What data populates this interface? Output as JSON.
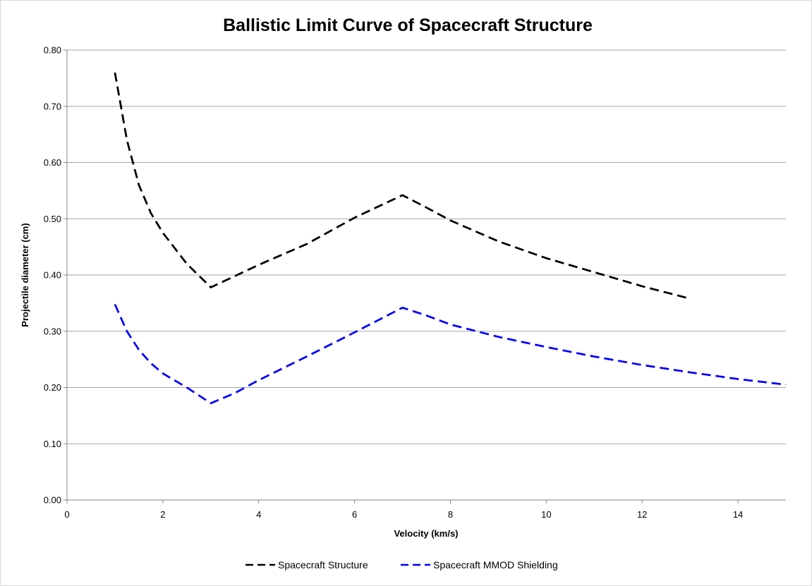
{
  "chart_data": {
    "type": "line",
    "title": "Ballistic Limit Curve of Spacecraft Structure",
    "xlabel": "Velocity (km/s)",
    "ylabel": "Projectile diameter (cm)",
    "xlim": [
      0,
      15
    ],
    "ylim": [
      0,
      0.8
    ],
    "x_ticks": [
      0,
      2,
      4,
      6,
      8,
      10,
      12,
      14
    ],
    "x_tick_labels": [
      "0",
      "2",
      "4",
      "6",
      "8",
      "10",
      "12",
      "14"
    ],
    "y_ticks": [
      0,
      0.1,
      0.2,
      0.3,
      0.4,
      0.5,
      0.6,
      0.7,
      0.8
    ],
    "y_tick_labels": [
      "0.00",
      "0.10",
      "0.20",
      "0.30",
      "0.40",
      "0.50",
      "0.60",
      "0.70",
      "0.80"
    ],
    "grid": "horizontal",
    "legend_position": "bottom",
    "line_style": "dashed",
    "series": [
      {
        "name": "Spacecraft Structure",
        "color": "#000000",
        "x": [
          1.0,
          1.25,
          1.5,
          1.75,
          2.0,
          2.5,
          3.0,
          3.5,
          4.0,
          5.0,
          6.0,
          7.0,
          7.5,
          8.0,
          9.0,
          10.0,
          11.0,
          12.0,
          13.0
        ],
        "y": [
          0.76,
          0.64,
          0.56,
          0.51,
          0.475,
          0.42,
          0.378,
          0.398,
          0.418,
          0.455,
          0.502,
          0.542,
          0.52,
          0.497,
          0.46,
          0.43,
          0.405,
          0.38,
          0.358
        ]
      },
      {
        "name": "Spacecraft MMOD Shielding",
        "color": "#0000ff",
        "x": [
          1.0,
          1.25,
          1.5,
          1.75,
          2.0,
          2.5,
          3.0,
          3.5,
          4.0,
          5.0,
          6.0,
          7.0,
          7.5,
          8.0,
          9.0,
          10.0,
          11.0,
          12.0,
          13.0,
          14.0,
          15.0
        ],
        "y": [
          0.348,
          0.3,
          0.267,
          0.243,
          0.225,
          0.2,
          0.172,
          0.19,
          0.213,
          0.255,
          0.298,
          0.342,
          0.328,
          0.312,
          0.29,
          0.272,
          0.255,
          0.24,
          0.227,
          0.215,
          0.205
        ]
      }
    ]
  }
}
